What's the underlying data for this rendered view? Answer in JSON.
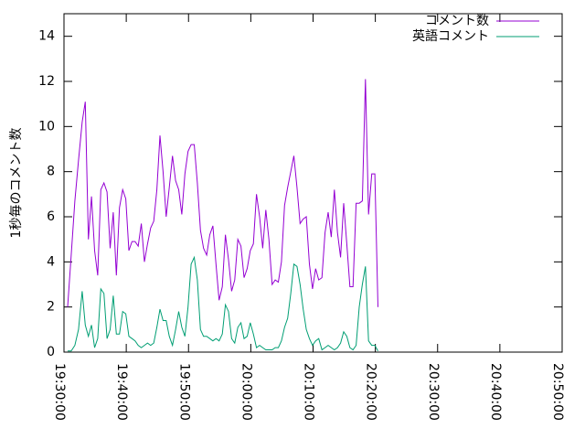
{
  "chart_data": {
    "type": "line",
    "title": "",
    "xlabel": "",
    "ylabel": "1秒毎のコメント数",
    "ylim": [
      0,
      15
    ],
    "yticks": [
      0,
      2,
      4,
      6,
      8,
      10,
      12,
      14
    ],
    "x_range": [
      "19:30:00",
      "20:50:00"
    ],
    "x_ticks": [
      "19:30:00",
      "19:40:00",
      "19:50:00",
      "20:00:00",
      "20:10:00",
      "20:20:00",
      "20:30:00",
      "20:40:00",
      "20:50:00"
    ],
    "grid": false,
    "legend_position": "top-right",
    "series": [
      {
        "name": "コメント数",
        "color": "#9400d3",
        "points": [
          [
            "19:30:35",
            2.0
          ],
          [
            "19:31:10",
            4.3
          ],
          [
            "19:31:45",
            6.7
          ],
          [
            "19:32:20",
            8.5
          ],
          [
            "19:32:55",
            10.2
          ],
          [
            "19:33:25",
            11.1
          ],
          [
            "19:33:55",
            5.0
          ],
          [
            "19:34:25",
            6.9
          ],
          [
            "19:34:55",
            4.5
          ],
          [
            "19:35:25",
            3.4
          ],
          [
            "19:35:55",
            7.2
          ],
          [
            "19:36:25",
            7.5
          ],
          [
            "19:36:55",
            7.1
          ],
          [
            "19:37:25",
            4.6
          ],
          [
            "19:37:55",
            6.2
          ],
          [
            "19:38:25",
            3.4
          ],
          [
            "19:38:55",
            6.4
          ],
          [
            "19:39:25",
            7.2
          ],
          [
            "19:39:55",
            6.8
          ],
          [
            "19:40:25",
            4.5
          ],
          [
            "19:40:55",
            4.9
          ],
          [
            "19:41:25",
            4.9
          ],
          [
            "19:41:55",
            4.7
          ],
          [
            "19:42:25",
            5.7
          ],
          [
            "19:42:55",
            4.0
          ],
          [
            "19:43:25",
            4.8
          ],
          [
            "19:43:55",
            5.5
          ],
          [
            "19:44:25",
            5.8
          ],
          [
            "19:44:55",
            7.2
          ],
          [
            "19:45:25",
            9.6
          ],
          [
            "19:45:55",
            8.0
          ],
          [
            "19:46:25",
            6.0
          ],
          [
            "19:46:55",
            7.3
          ],
          [
            "19:47:25",
            8.7
          ],
          [
            "19:47:55",
            7.6
          ],
          [
            "19:48:25",
            7.2
          ],
          [
            "19:48:55",
            6.1
          ],
          [
            "19:49:25",
            7.9
          ],
          [
            "19:49:55",
            8.9
          ],
          [
            "19:50:25",
            9.2
          ],
          [
            "19:50:55",
            9.2
          ],
          [
            "19:51:25",
            7.5
          ],
          [
            "19:51:55",
            5.4
          ],
          [
            "19:52:25",
            4.6
          ],
          [
            "19:52:55",
            4.3
          ],
          [
            "19:53:25",
            5.2
          ],
          [
            "19:53:55",
            5.6
          ],
          [
            "19:54:25",
            3.9
          ],
          [
            "19:54:55",
            2.3
          ],
          [
            "19:55:25",
            2.9
          ],
          [
            "19:55:55",
            5.2
          ],
          [
            "19:56:25",
            4.1
          ],
          [
            "19:56:55",
            2.7
          ],
          [
            "19:57:25",
            3.2
          ],
          [
            "19:57:55",
            5.0
          ],
          [
            "19:58:25",
            4.7
          ],
          [
            "19:58:55",
            3.3
          ],
          [
            "19:59:25",
            3.7
          ],
          [
            "19:59:55",
            4.5
          ],
          [
            "20:00:25",
            4.8
          ],
          [
            "20:00:55",
            7.0
          ],
          [
            "20:01:25",
            6.0
          ],
          [
            "20:01:55",
            4.6
          ],
          [
            "20:02:25",
            6.3
          ],
          [
            "20:02:55",
            5.0
          ],
          [
            "20:03:25",
            3.0
          ],
          [
            "20:03:55",
            3.2
          ],
          [
            "20:04:25",
            3.1
          ],
          [
            "20:04:55",
            4.0
          ],
          [
            "20:05:25",
            6.5
          ],
          [
            "20:05:55",
            7.3
          ],
          [
            "20:06:25",
            8.0
          ],
          [
            "20:06:55",
            8.7
          ],
          [
            "20:07:25",
            7.3
          ],
          [
            "20:07:55",
            5.7
          ],
          [
            "20:08:25",
            5.9
          ],
          [
            "20:08:55",
            6.0
          ],
          [
            "20:09:25",
            3.9
          ],
          [
            "20:09:55",
            2.8
          ],
          [
            "20:10:25",
            3.7
          ],
          [
            "20:10:55",
            3.2
          ],
          [
            "20:11:25",
            3.3
          ],
          [
            "20:11:55",
            5.3
          ],
          [
            "20:12:25",
            6.2
          ],
          [
            "20:12:55",
            5.1
          ],
          [
            "20:13:25",
            7.2
          ],
          [
            "20:13:55",
            5.3
          ],
          [
            "20:14:25",
            4.2
          ],
          [
            "20:14:55",
            6.6
          ],
          [
            "20:15:25",
            4.8
          ],
          [
            "20:15:55",
            2.9
          ],
          [
            "20:16:25",
            2.9
          ],
          [
            "20:16:55",
            6.6
          ],
          [
            "20:17:25",
            6.6
          ],
          [
            "20:17:55",
            6.7
          ],
          [
            "20:18:25",
            12.1
          ],
          [
            "20:18:55",
            6.1
          ],
          [
            "20:19:25",
            7.9
          ],
          [
            "20:19:55",
            7.9
          ],
          [
            "20:20:25",
            2.0
          ]
        ]
      },
      {
        "name": "英語コメント",
        "color": "#009e73",
        "points": [
          [
            "19:30:35",
            0.05
          ],
          [
            "19:31:10",
            0.05
          ],
          [
            "19:31:45",
            0.3
          ],
          [
            "19:32:20",
            1.0
          ],
          [
            "19:32:55",
            2.7
          ],
          [
            "19:33:25",
            1.2
          ],
          [
            "19:33:55",
            0.7
          ],
          [
            "19:34:25",
            1.2
          ],
          [
            "19:34:55",
            0.2
          ],
          [
            "19:35:25",
            0.6
          ],
          [
            "19:35:55",
            2.8
          ],
          [
            "19:36:25",
            2.6
          ],
          [
            "19:36:55",
            0.6
          ],
          [
            "19:37:25",
            1.0
          ],
          [
            "19:37:55",
            2.5
          ],
          [
            "19:38:25",
            0.8
          ],
          [
            "19:38:55",
            0.8
          ],
          [
            "19:39:25",
            1.8
          ],
          [
            "19:39:55",
            1.7
          ],
          [
            "19:40:25",
            0.7
          ],
          [
            "19:40:55",
            0.6
          ],
          [
            "19:41:25",
            0.5
          ],
          [
            "19:41:55",
            0.3
          ],
          [
            "19:42:25",
            0.2
          ],
          [
            "19:42:55",
            0.3
          ],
          [
            "19:43:25",
            0.4
          ],
          [
            "19:43:55",
            0.3
          ],
          [
            "19:44:25",
            0.4
          ],
          [
            "19:44:55",
            1.1
          ],
          [
            "19:45:25",
            1.9
          ],
          [
            "19:45:55",
            1.4
          ],
          [
            "19:46:25",
            1.4
          ],
          [
            "19:46:55",
            0.7
          ],
          [
            "19:47:25",
            0.3
          ],
          [
            "19:47:55",
            1.0
          ],
          [
            "19:48:25",
            1.8
          ],
          [
            "19:48:55",
            1.1
          ],
          [
            "19:49:25",
            0.7
          ],
          [
            "19:49:55",
            2.0
          ],
          [
            "19:50:25",
            3.9
          ],
          [
            "19:50:55",
            4.2
          ],
          [
            "19:51:25",
            3.2
          ],
          [
            "19:51:55",
            1.0
          ],
          [
            "19:52:25",
            0.7
          ],
          [
            "19:52:55",
            0.7
          ],
          [
            "19:53:25",
            0.6
          ],
          [
            "19:53:55",
            0.5
          ],
          [
            "19:54:25",
            0.6
          ],
          [
            "19:54:55",
            0.5
          ],
          [
            "19:55:25",
            0.8
          ],
          [
            "19:55:55",
            2.1
          ],
          [
            "19:56:25",
            1.8
          ],
          [
            "19:56:55",
            0.6
          ],
          [
            "19:57:25",
            0.4
          ],
          [
            "19:57:55",
            1.1
          ],
          [
            "19:58:25",
            1.3
          ],
          [
            "19:58:55",
            0.6
          ],
          [
            "19:59:25",
            0.7
          ],
          [
            "19:59:55",
            1.3
          ],
          [
            "20:00:25",
            0.8
          ],
          [
            "20:00:55",
            0.2
          ],
          [
            "20:01:25",
            0.3
          ],
          [
            "20:01:55",
            0.2
          ],
          [
            "20:02:25",
            0.1
          ],
          [
            "20:02:55",
            0.1
          ],
          [
            "20:03:25",
            0.1
          ],
          [
            "20:03:55",
            0.2
          ],
          [
            "20:04:25",
            0.2
          ],
          [
            "20:04:55",
            0.5
          ],
          [
            "20:05:25",
            1.1
          ],
          [
            "20:05:55",
            1.5
          ],
          [
            "20:06:25",
            2.6
          ],
          [
            "20:06:55",
            3.9
          ],
          [
            "20:07:25",
            3.8
          ],
          [
            "20:07:55",
            3.0
          ],
          [
            "20:08:25",
            1.9
          ],
          [
            "20:08:55",
            1.0
          ],
          [
            "20:09:25",
            0.6
          ],
          [
            "20:09:55",
            0.3
          ],
          [
            "20:10:25",
            0.5
          ],
          [
            "20:10:55",
            0.6
          ],
          [
            "20:11:25",
            0.1
          ],
          [
            "20:11:55",
            0.2
          ],
          [
            "20:12:25",
            0.3
          ],
          [
            "20:12:55",
            0.2
          ],
          [
            "20:13:25",
            0.1
          ],
          [
            "20:13:55",
            0.2
          ],
          [
            "20:14:25",
            0.4
          ],
          [
            "20:14:55",
            0.9
          ],
          [
            "20:15:25",
            0.7
          ],
          [
            "20:15:55",
            0.2
          ],
          [
            "20:16:25",
            0.1
          ],
          [
            "20:16:55",
            0.3
          ],
          [
            "20:17:25",
            2.0
          ],
          [
            "20:17:55",
            3.0
          ],
          [
            "20:18:25",
            3.8
          ],
          [
            "20:18:55",
            0.5
          ],
          [
            "20:19:25",
            0.3
          ],
          [
            "20:19:55",
            0.3
          ],
          [
            "20:20:25",
            0.05
          ]
        ]
      }
    ]
  }
}
